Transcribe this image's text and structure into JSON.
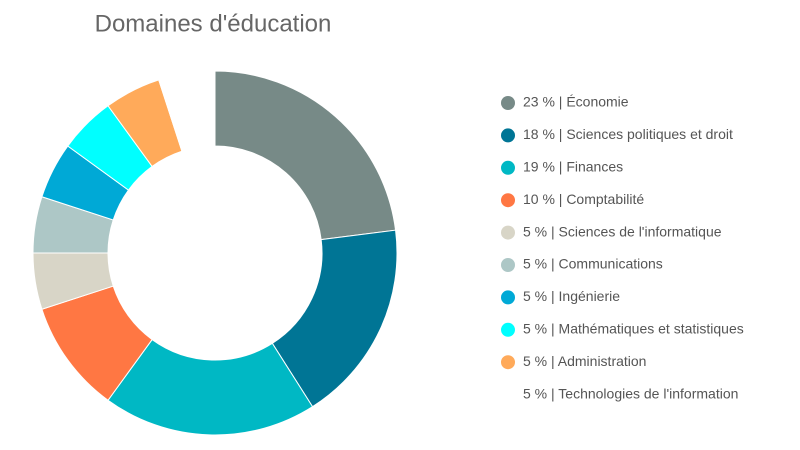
{
  "chart_data": {
    "type": "donut",
    "title": "Domaines d'éducation",
    "categories": [
      "23 % | Économie",
      "18 % | Sciences politiques et droit",
      "19 % | Finances",
      "10 % | Comptabilité",
      "5 % | Sciences de l'informatique",
      "5 % | Communications",
      "5 % | Ingénierie",
      "5 % | Mathématiques et statistiques",
      "5 % | Administration",
      "5 % | Technologies de l'information"
    ],
    "values": [
      23,
      18,
      19,
      10,
      5,
      5,
      5,
      5,
      5,
      5
    ],
    "colors": [
      "#778a87",
      "#007595",
      "#00b8c4",
      "#ff7743",
      "#d8d5c7",
      "#adc7c6",
      "#00a9d6",
      "#00ffff",
      "#ffaa5a",
      "#ffffff"
    ],
    "legend_position": "right"
  }
}
